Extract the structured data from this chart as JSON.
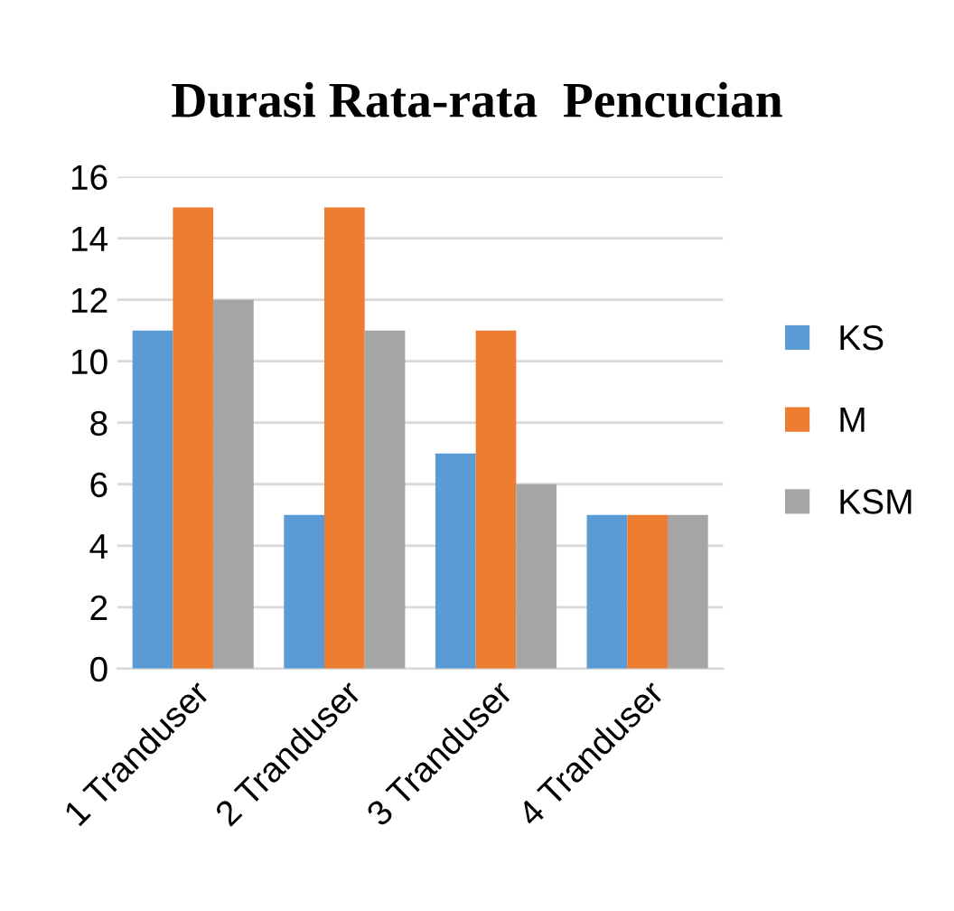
{
  "chart_data": {
    "type": "bar",
    "title": "Durasi Rata-rata  Pencucian",
    "categories": [
      "1 Tranduser",
      "2 Tranduser",
      "3 Tranduser",
      "4 Tranduser"
    ],
    "series": [
      {
        "name": "KS",
        "color": "#5b9bd5",
        "values": [
          11,
          5,
          7,
          5
        ]
      },
      {
        "name": "M",
        "color": "#ed7d31",
        "values": [
          15,
          15,
          11,
          5
        ]
      },
      {
        "name": "KSM",
        "color": "#a5a5a5",
        "values": [
          12,
          11,
          6,
          5
        ]
      }
    ],
    "ylim": [
      0,
      16
    ],
    "yticks": [
      0,
      2,
      4,
      6,
      8,
      10,
      12,
      14,
      16
    ],
    "grid": "y",
    "legend": "right"
  }
}
